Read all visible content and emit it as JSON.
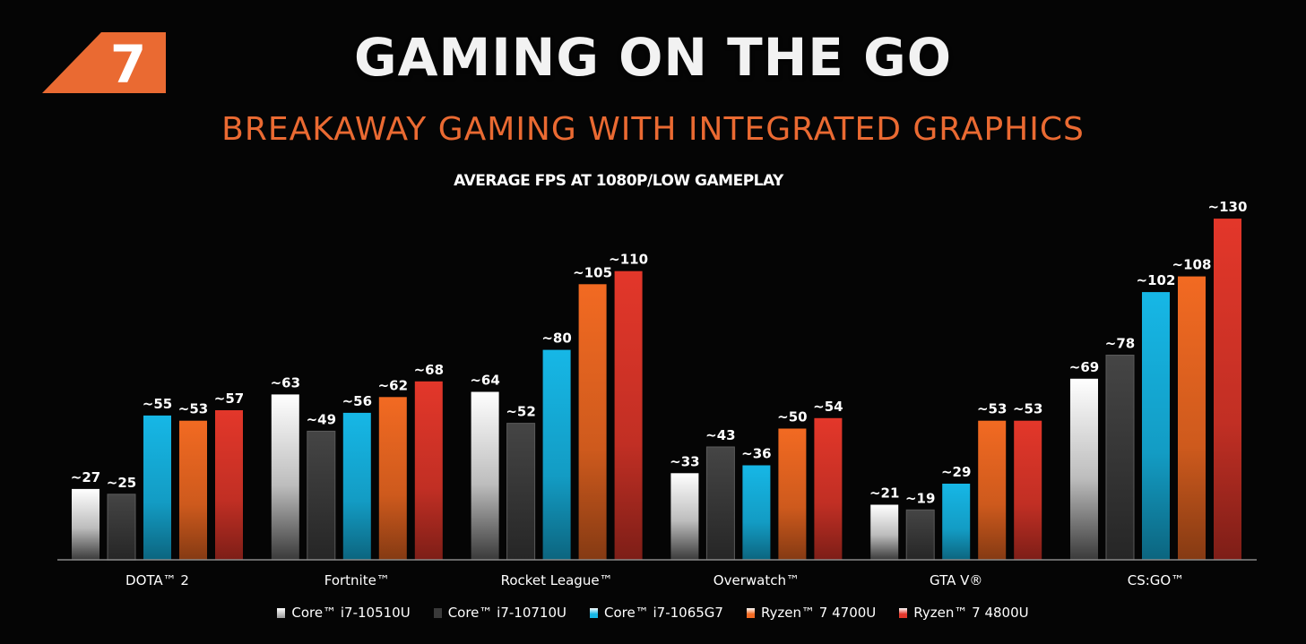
{
  "badge": {
    "number": "7"
  },
  "header": {
    "title": "GAMING ON THE GO",
    "subtitle": "BREAKAWAY GAMING WITH INTEGRATED GRAPHICS"
  },
  "chart_data": {
    "type": "bar",
    "title": "AVERAGE FPS AT 1080P/LOW GAMEPLAY",
    "xlabel": "",
    "ylabel": "",
    "ylim": [
      0,
      140
    ],
    "grid": false,
    "legend_position": "bottom",
    "categories": [
      "DOTA™ 2",
      "Fortnite™",
      "Rocket League™",
      "Overwatch™",
      "GTA V®",
      "CS:GO™"
    ],
    "series": [
      {
        "name": "Core™ i7-10510U",
        "color": "#e6e6e6",
        "values": [
          27,
          63,
          64,
          33,
          21,
          69
        ],
        "labels": [
          "~27",
          "~63",
          "~64",
          "~33",
          "~21",
          "~69"
        ]
      },
      {
        "name": "Core™ i7-10710U",
        "color": "#3a3a3a",
        "values": [
          25,
          49,
          52,
          43,
          19,
          78
        ],
        "labels": [
          "~25",
          "~49",
          "~52",
          "~43",
          "~19",
          "~78"
        ]
      },
      {
        "name": "Core™ i7-1065G7",
        "color": "#16b7e6",
        "values": [
          55,
          56,
          80,
          36,
          29,
          102
        ],
        "labels": [
          "~55",
          "~56",
          "~80",
          "~36",
          "~29",
          "~102"
        ]
      },
      {
        "name": "Ryzen™ 7 4700U",
        "color": "#f26a22",
        "values": [
          53,
          62,
          105,
          50,
          53,
          108
        ],
        "labels": [
          "~53",
          "~62",
          "~105",
          "~50",
          "~53",
          "~108"
        ]
      },
      {
        "name": "Ryzen™ 7 4800U",
        "color": "#e3372a",
        "values": [
          57,
          68,
          110,
          54,
          53,
          130
        ],
        "labels": [
          "~57",
          "~68",
          "~110",
          "~54",
          "~53",
          "~130"
        ]
      }
    ]
  }
}
